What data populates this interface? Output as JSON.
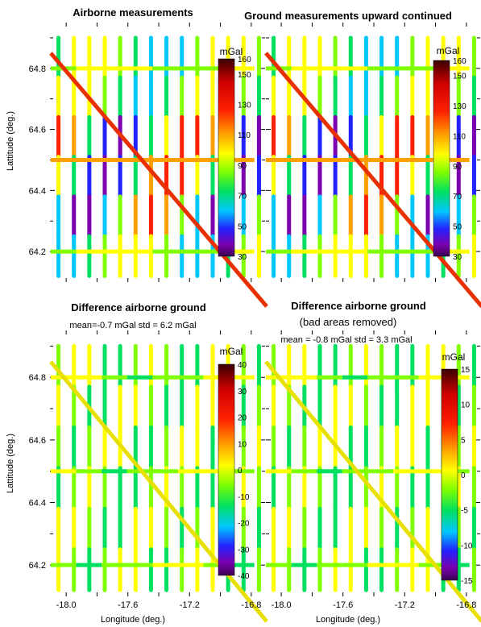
{
  "figure": {
    "xlabel": "Longitude (deg.)",
    "ylabel": "Lattitude (deg.)"
  },
  "chart_data": [
    {
      "type": "heatmap",
      "title": "Airborne measurements",
      "subtitle": "",
      "xlim": [
        -18.1,
        -16.7
      ],
      "ylim": [
        64.1,
        64.95
      ],
      "xticks": [],
      "yticks": [
        "64.8",
        "64.6",
        "64.4",
        "64.2"
      ],
      "colorbar": {
        "unit": "mGal",
        "min": 30,
        "max": 160,
        "ticks": [
          "160",
          "150",
          "130",
          "110",
          "90",
          "70",
          "50",
          "30"
        ],
        "palette": "rainbow"
      },
      "tracks": {
        "ns_longitudes": [
          -18.05,
          -17.95,
          -17.85,
          -17.75,
          -17.65,
          -17.55,
          -17.45,
          -17.35,
          -17.25,
          -17.15,
          -17.05,
          -16.95,
          -16.85,
          -16.75
        ],
        "ew_latitudes": [
          64.8,
          64.5,
          64.2
        ],
        "diagonal": "from (-18.1, 64.85) to (-16.7, 64.0)"
      },
      "value_range_observed": [
        30,
        160
      ]
    },
    {
      "type": "heatmap",
      "title": "Ground measurements upward continued",
      "subtitle": "",
      "xlim": [
        -18.1,
        -16.7
      ],
      "ylim": [
        64.1,
        64.95
      ],
      "xticks": [],
      "yticks": [],
      "colorbar": {
        "unit": "mGal",
        "min": 30,
        "max": 160,
        "ticks": [
          "160",
          "150",
          "130",
          "110",
          "90",
          "70",
          "50",
          "30"
        ],
        "palette": "rainbow"
      },
      "value_range_observed": [
        60,
        150
      ]
    },
    {
      "type": "heatmap",
      "title": "Difference airborne ground",
      "subtitle": "mean=-0.7 mGal  std = 6.2 mGal",
      "xlim": [
        -18.1,
        -16.7
      ],
      "ylim": [
        64.1,
        64.95
      ],
      "xticks": [
        "-18.0",
        "-17.6",
        "-17.2",
        "-16.8"
      ],
      "yticks": [
        "64.8",
        "64.6",
        "64.4",
        "64.2"
      ],
      "colorbar": {
        "unit": "mGal",
        "min": -40,
        "max": 40,
        "ticks": [
          "40",
          "30",
          "20",
          "10",
          "0",
          "-10",
          "-20",
          "-30",
          "-40"
        ],
        "palette": "rainbow"
      },
      "stats": {
        "mean": -0.7,
        "std": 6.2
      }
    },
    {
      "type": "heatmap",
      "title": "Difference airborne ground",
      "subtitle": "(bad areas removed)",
      "subtitle2": "mean = -0.8 mGal  std = 3.3 mGal",
      "xlim": [
        -18.1,
        -16.7
      ],
      "ylim": [
        64.1,
        64.95
      ],
      "xticks": [
        "-18.0",
        "-17.6",
        "-17.2",
        "-16.8"
      ],
      "yticks": [],
      "colorbar": {
        "unit": "mGal",
        "min": -15,
        "max": 15,
        "ticks": [
          "15",
          "10",
          "5",
          "0",
          "-5",
          "-10",
          "-15"
        ],
        "palette": "rainbow"
      },
      "stats": {
        "mean": -0.8,
        "std": 3.3
      }
    }
  ]
}
